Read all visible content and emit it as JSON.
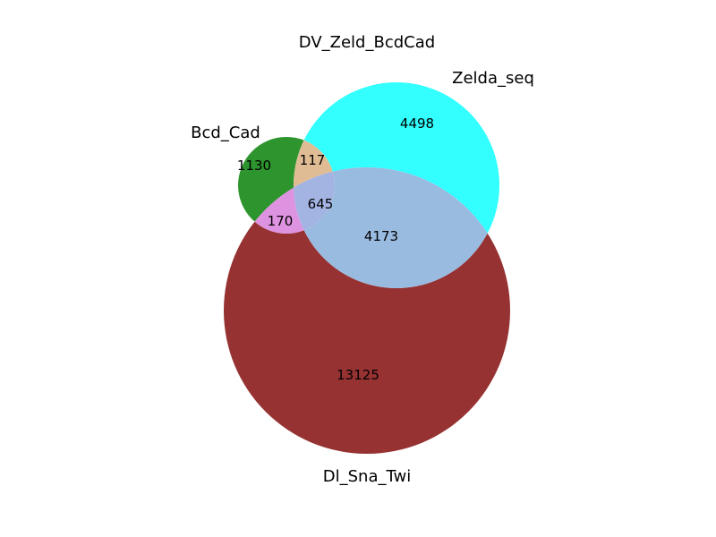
{
  "title": "DV_Zeld_BcdCad",
  "sets": {
    "bcd_cad": {
      "label": "Bcd_Cad",
      "color": "#008000"
    },
    "zelda_seq": {
      "label": "Zelda_seq",
      "color": "#00ffff"
    },
    "dl_sna_twi": {
      "label": "Dl_Sna_Twi",
      "color": "#800000"
    }
  },
  "regions": {
    "bcd_only": "1130",
    "zelda_only": "4498",
    "dl_only": "13125",
    "bcd_zelda": "117",
    "bcd_dl": "170",
    "zelda_dl": "4173",
    "all_three": "645"
  },
  "colors": {
    "bcd_only": "#2e952e",
    "zelda_only": "#33ffff",
    "dl_only": "#963232",
    "bcd_zelda": "#e0bc95",
    "bcd_dl": "#de93e0",
    "zelda_dl": "#99bbe0",
    "all_three": "#a3b4e3"
  }
}
